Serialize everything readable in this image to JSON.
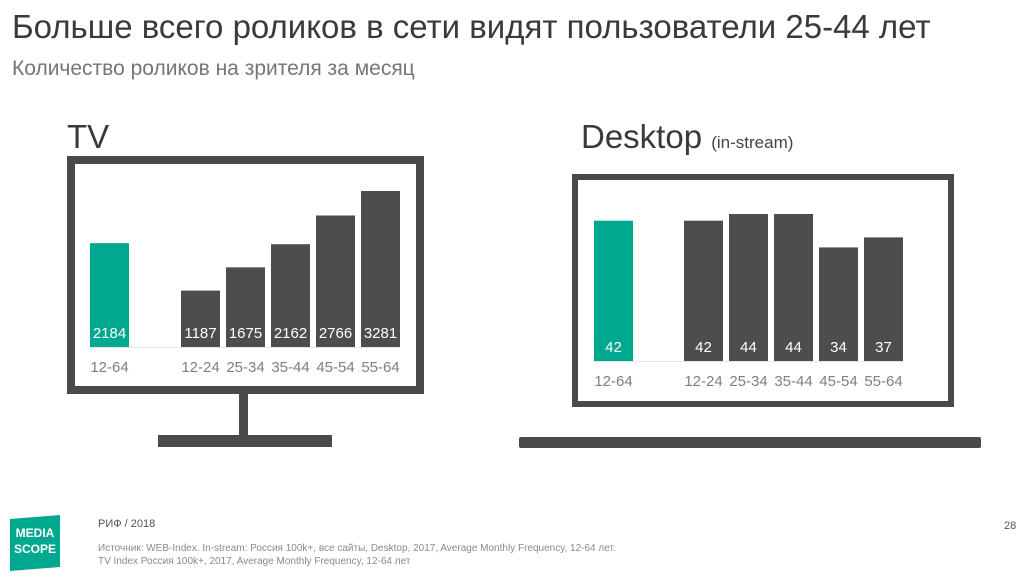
{
  "title": "Больше всего роликов в сети видят пользователи 25-44 лет",
  "subtitle": "Количество роликов на зрителя за месяц",
  "colors": {
    "accent": "#00a88f",
    "bar": "#4d4d4d",
    "frame": "#4a4a4a",
    "label": "#7f7f7f"
  },
  "chart_data": [
    {
      "type": "bar",
      "panel_title": "TV",
      "panel_subtitle": "",
      "categories": [
        "12-64",
        "12-24",
        "25-34",
        "35-44",
        "45-54",
        "55-64"
      ],
      "values": [
        2184,
        1187,
        1675,
        2162,
        2766,
        3281
      ],
      "highlight": "12-64",
      "ylim": [
        0,
        3281
      ]
    },
    {
      "type": "bar",
      "panel_title": "Desktop",
      "panel_subtitle": "(in-stream)",
      "categories": [
        "12-64",
        "12-24",
        "25-34",
        "35-44",
        "45-54",
        "55-64"
      ],
      "values": [
        42,
        42,
        44,
        44,
        34,
        37
      ],
      "highlight": "12-64",
      "ylim": [
        0,
        44
      ]
    }
  ],
  "footer": {
    "event": "РИФ / 2018",
    "source_line1": "Источник: WEB-Index. In-stream: Россия 100k+, все сайты, Desktop, 2017, Average Monthly Frequency, 12-64 лет.",
    "source_line2": "TV Index Россия 100k+, 2017, Average Monthly Frequency, 12-64 лет",
    "page": "28"
  },
  "logo": {
    "line1": "MEDIA",
    "line2": "SCOPE"
  }
}
